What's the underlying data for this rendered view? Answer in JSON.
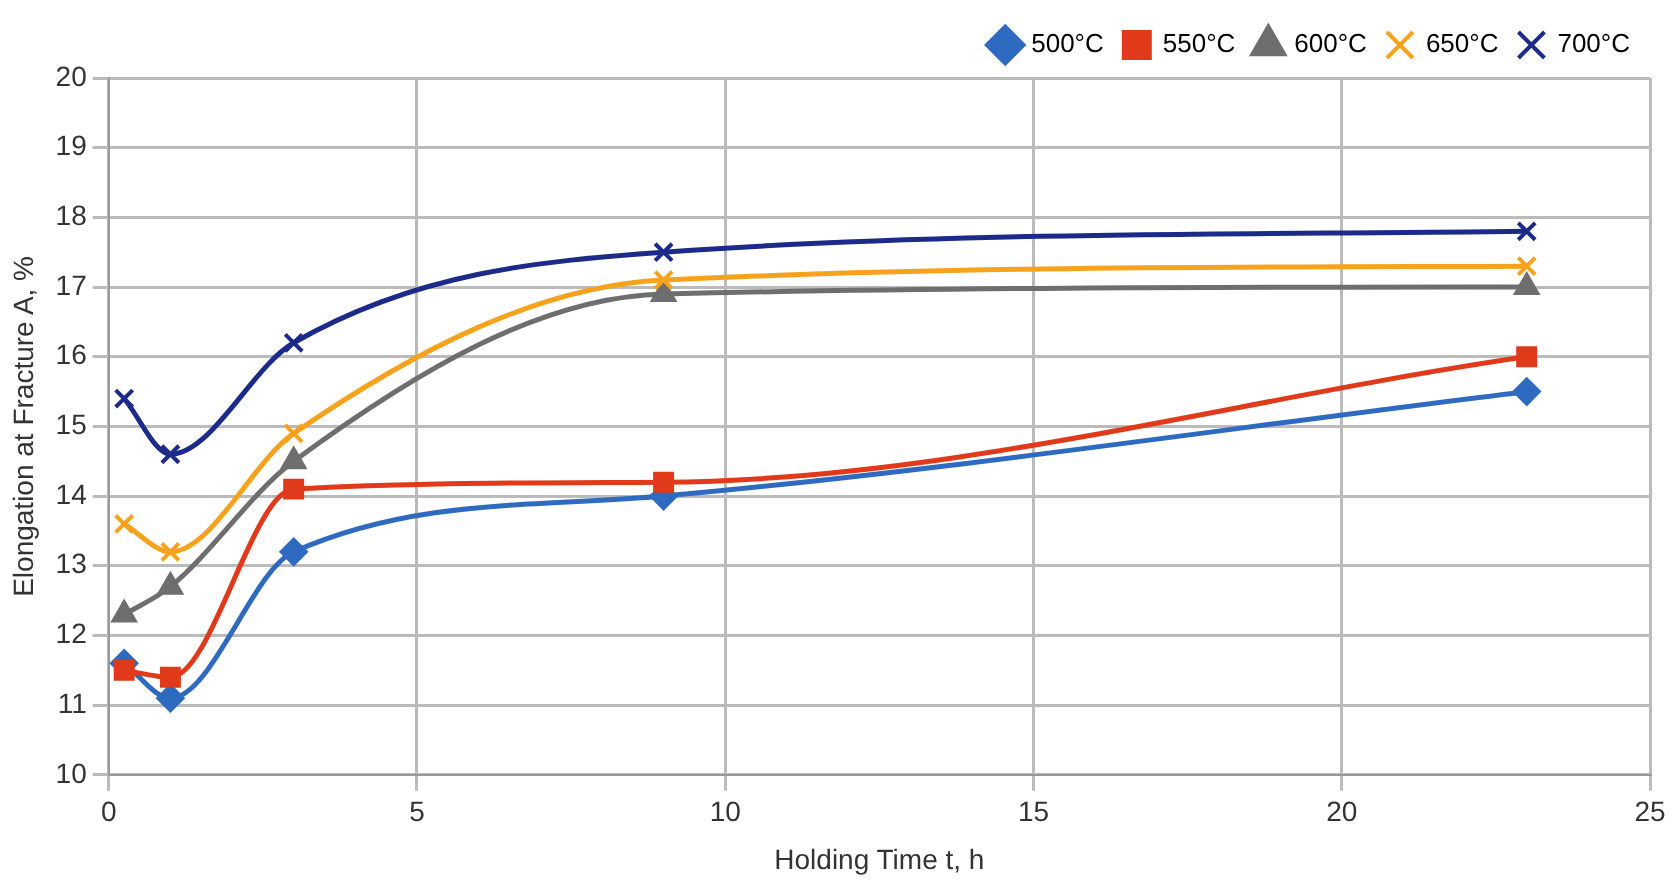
{
  "chart_data": {
    "type": "line",
    "xlabel": "Holding Time t, h",
    "ylabel": "Elongation at Fracture A, %",
    "x": [
      0.25,
      1,
      3,
      9,
      23
    ],
    "xlim": [
      0,
      25
    ],
    "xticks": [
      0,
      5,
      10,
      15,
      20,
      25
    ],
    "ylim": [
      10,
      20
    ],
    "yticks": [
      10,
      11,
      12,
      13,
      14,
      15,
      16,
      17,
      18,
      19,
      20
    ],
    "grid": true,
    "legend": "top right",
    "series": [
      {
        "name": "500°C",
        "color": "#2e6bc0",
        "marker": "diamond",
        "values": [
          11.6,
          11.1,
          13.2,
          14.0,
          15.5
        ]
      },
      {
        "name": "550°C",
        "color": "#e03a1a",
        "marker": "square",
        "values": [
          11.5,
          11.4,
          14.1,
          14.2,
          16.0
        ]
      },
      {
        "name": "600°C",
        "color": "#6e6e6e",
        "marker": "triangle",
        "values": [
          12.3,
          12.7,
          14.5,
          16.9,
          17.0
        ]
      },
      {
        "name": "650°C",
        "color": "#f7a21c",
        "marker": "cross",
        "values": [
          13.6,
          13.2,
          14.9,
          17.1,
          17.3
        ]
      },
      {
        "name": "700°C",
        "color": "#1c2a8a",
        "marker": "cross",
        "values": [
          15.4,
          14.6,
          16.2,
          17.5,
          17.8
        ]
      }
    ]
  }
}
